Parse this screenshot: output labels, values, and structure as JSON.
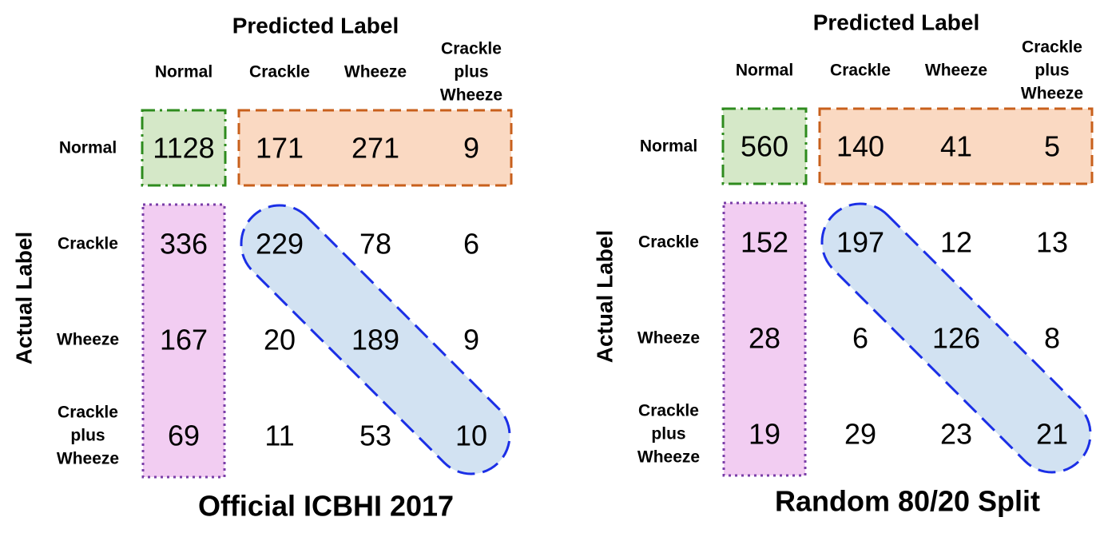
{
  "chart_data": [
    {
      "type": "heatmap",
      "title": "Official ICBHI 2017",
      "xlabel": "Predicted Label",
      "ylabel": "Actual Label",
      "x_categories": [
        [
          "Normal"
        ],
        [
          "Crackle"
        ],
        [
          "Wheeze"
        ],
        [
          "Crackle",
          "plus",
          "Wheeze"
        ]
      ],
      "y_categories": [
        [
          "Normal"
        ],
        [
          "Crackle"
        ],
        [
          "Wheeze"
        ],
        [
          "Crackle",
          "plus",
          "Wheeze"
        ]
      ],
      "values": [
        [
          1128,
          171,
          271,
          9
        ],
        [
          336,
          229,
          78,
          6
        ],
        [
          167,
          20,
          189,
          9
        ],
        [
          69,
          11,
          53,
          10
        ]
      ]
    },
    {
      "type": "heatmap",
      "title": "Random 80/20 Split",
      "xlabel": "Predicted Label",
      "ylabel": "Actual Label",
      "x_categories": [
        [
          "Normal"
        ],
        [
          "Crackle"
        ],
        [
          "Wheeze"
        ],
        [
          "Crackle",
          "plus",
          "Wheeze"
        ]
      ],
      "y_categories": [
        [
          "Normal"
        ],
        [
          "Crackle"
        ],
        [
          "Wheeze"
        ],
        [
          "Crackle",
          "plus",
          "Wheeze"
        ]
      ],
      "values": [
        [
          560,
          140,
          41,
          5
        ],
        [
          152,
          197,
          12,
          13
        ],
        [
          28,
          6,
          126,
          8
        ],
        [
          19,
          29,
          23,
          21
        ]
      ]
    }
  ],
  "highlight_colors": {
    "true_normal": {
      "fill": "#d5e8c8",
      "stroke": "#2e8b1e"
    },
    "normal_misclassified": {
      "fill": "#fad9c2",
      "stroke": "#c8601c"
    },
    "abnormal_as_normal": {
      "fill": "#f2cdf2",
      "stroke": "#7a3ea8"
    },
    "abnormal_correct": {
      "fill": "#d2e2f2",
      "stroke": "#1b2fe6"
    }
  }
}
